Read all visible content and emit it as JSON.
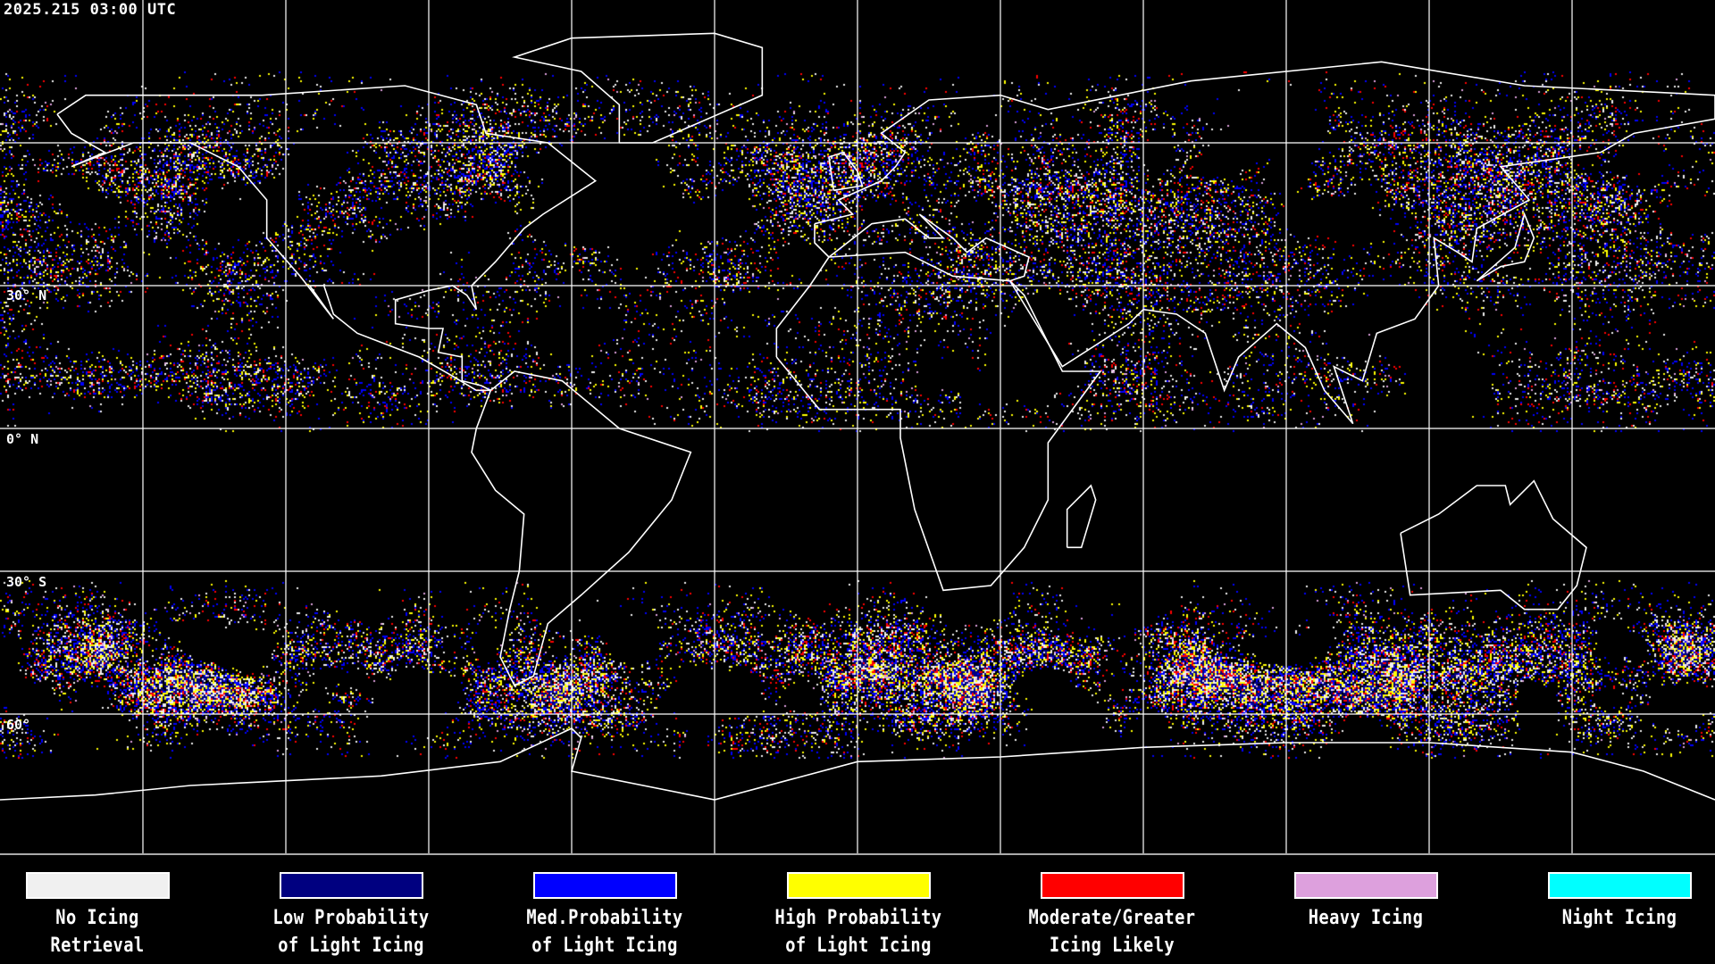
{
  "title": "2025.215 03:00 UTC",
  "map": {
    "projection": "equirectangular",
    "grid_spacing_deg": 30,
    "lat_labels": [
      {
        "text": "30° N",
        "lat": 30
      },
      {
        "text": "0° N",
        "lat": 0
      },
      {
        "text": "30° S",
        "lat": -30
      },
      {
        "text": "60°",
        "lat": -60
      }
    ],
    "background": "#000000",
    "coastline_color": "#ffffff",
    "grid_color": "#ffffff"
  },
  "legend": [
    {
      "line1": "No Icing",
      "line2": "Retrieval",
      "color": "#f0f0f0"
    },
    {
      "line1": "Low Probability",
      "line2": "of Light Icing",
      "color": "#000080"
    },
    {
      "line1": "Med.Probability",
      "line2": "of Light Icing",
      "color": "#0000ff"
    },
    {
      "line1": "High Probability",
      "line2": "of Light Icing",
      "color": "#ffff00"
    },
    {
      "line1": "Moderate/Greater",
      "line2": "Icing Likely",
      "color": "#ff0000"
    },
    {
      "line1": "Heavy Icing",
      "line2": "",
      "color": "#dda0dd"
    },
    {
      "line1": "Night Icing",
      "line2": "",
      "color": "#00ffff"
    }
  ]
}
